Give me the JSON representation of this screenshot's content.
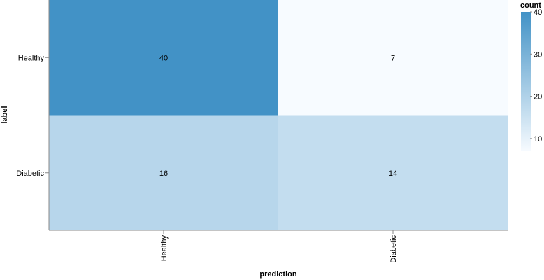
{
  "chart_data": {
    "type": "heatmap",
    "x_categories": [
      "Healthy",
      "Diabetic"
    ],
    "y_categories": [
      "Healthy",
      "Diabetic"
    ],
    "cells": [
      {
        "label": "Healthy",
        "prediction": "Healthy",
        "count": 40
      },
      {
        "label": "Healthy",
        "prediction": "Diabetic",
        "count": 7
      },
      {
        "label": "Diabetic",
        "prediction": "Healthy",
        "count": 16
      },
      {
        "label": "Diabetic",
        "prediction": "Diabetic",
        "count": 14
      }
    ],
    "xlabel": "prediction",
    "ylabel": "label",
    "legend": {
      "title": "count",
      "placement": "right",
      "domain": [
        7,
        40
      ],
      "ticks": [
        10,
        20,
        30,
        40
      ],
      "color_low": "#f7fbff",
      "color_high": "#4292c6"
    }
  }
}
